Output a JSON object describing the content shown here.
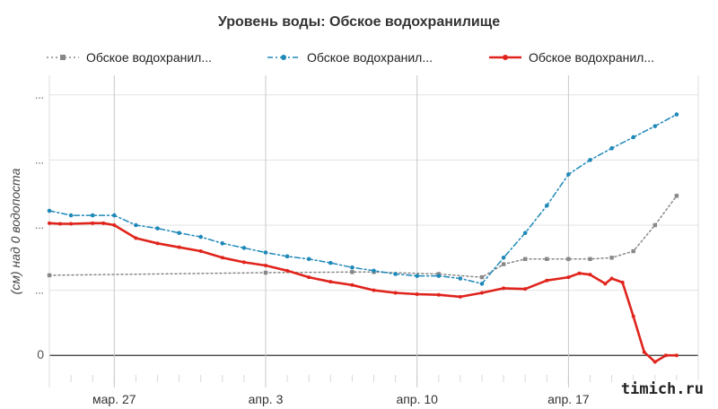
{
  "chart_data": {
    "type": "line",
    "title": "Уровень воды: Обское водохранилище",
    "ylabel": "(см) над 0 водопоста",
    "xlabel": "",
    "y_tick_labels": [
      "0",
      "...",
      "...",
      "...",
      "..."
    ],
    "ylim": [
      -30,
      430
    ],
    "grid": true,
    "legend_position": "top",
    "x_ticks": [
      {
        "label": "мар. 27",
        "day": 27
      },
      {
        "label": "апр. 3",
        "day": 34
      },
      {
        "label": "апр. 10",
        "day": 41
      },
      {
        "label": "апр. 17",
        "day": 48
      }
    ],
    "series": [
      {
        "name": "Обское водохранил...",
        "color": "#888888",
        "style": "dotted",
        "x": [
          24,
          34,
          38,
          39,
          42,
          44,
          45,
          46,
          47,
          48,
          49,
          50,
          51,
          52,
          53
        ],
        "values": [
          123,
          127,
          128,
          128,
          125,
          120,
          140,
          148,
          148,
          148,
          148,
          150,
          160,
          200,
          245
        ]
      },
      {
        "name": "Обское водохранил...",
        "color": "#1e88b8",
        "style": "dashdot",
        "x": [
          24,
          25,
          26,
          27,
          28,
          29,
          30,
          31,
          32,
          33,
          34,
          35,
          36,
          37,
          38,
          39,
          40,
          41,
          42,
          43,
          44,
          45,
          46,
          47,
          48,
          49,
          50,
          51,
          52,
          53
        ],
        "values": [
          222,
          215,
          215,
          215,
          200,
          195,
          188,
          182,
          172,
          165,
          158,
          152,
          148,
          142,
          135,
          130,
          125,
          122,
          122,
          118,
          110,
          150,
          188,
          230,
          278,
          300,
          318,
          335,
          352,
          370
        ]
      },
      {
        "name": "Обское водохранил...",
        "color": "#e0241c",
        "style": "solid",
        "x": [
          24,
          24.5,
          25,
          26,
          26.5,
          27,
          28,
          29,
          30,
          31,
          32,
          33,
          34,
          35,
          36,
          37,
          38,
          39,
          40,
          41,
          42,
          43,
          44,
          45,
          46,
          47,
          48,
          48.5,
          49,
          49.7,
          50,
          50.5,
          51,
          51.5,
          52,
          52.5,
          53
        ],
        "values": [
          203,
          202,
          202,
          203,
          203,
          200,
          180,
          172,
          166,
          160,
          150,
          143,
          138,
          130,
          120,
          113,
          108,
          100,
          96,
          94,
          93,
          90,
          96,
          103,
          102,
          115,
          120,
          126,
          124,
          110,
          118,
          112,
          60,
          5,
          -10,
          0,
          0
        ]
      }
    ]
  },
  "watermark": "timich.ru"
}
